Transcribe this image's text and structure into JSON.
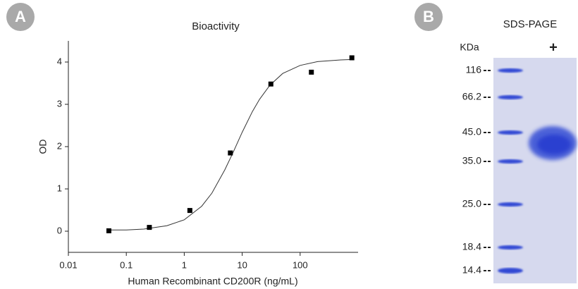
{
  "panel_labels": [
    "A",
    "B"
  ],
  "chart_data": {
    "type": "scatter",
    "title": "Bioactivity",
    "x_label": "Human Recombinant CD200R (ng/mL)",
    "y_label": "OD",
    "x": [
      0.05,
      0.25,
      1.25,
      6.25,
      31.25,
      156.25,
      781.25
    ],
    "values": [
      0.01,
      0.09,
      0.49,
      1.85,
      3.48,
      3.76,
      4.1
    ],
    "color": "#000000",
    "fit_curve": {
      "x": [
        0.05,
        0.1,
        0.2,
        0.5,
        1,
        2,
        3,
        5,
        7,
        10,
        15,
        20,
        30,
        50,
        100,
        200,
        500,
        800
      ],
      "values": [
        0.03,
        0.03,
        0.05,
        0.13,
        0.27,
        0.59,
        0.9,
        1.45,
        1.87,
        2.34,
        2.83,
        3.12,
        3.45,
        3.73,
        3.92,
        4.01,
        4.05,
        4.06
      ]
    },
    "x_log": true,
    "xlim": [
      0.01,
      1000
    ],
    "xticks": [
      0.01,
      0.1,
      1,
      10,
      100
    ],
    "ylim": [
      -0.5,
      4.5
    ],
    "yticks": [
      0,
      1,
      2,
      3,
      4
    ]
  },
  "gel": {
    "title": "SDS-PAGE",
    "unit": "KDa",
    "lane_label": "+",
    "markers": [
      "116",
      "66.2",
      "45.0",
      "35.0",
      "25.0",
      "18.4",
      "14.4"
    ]
  }
}
